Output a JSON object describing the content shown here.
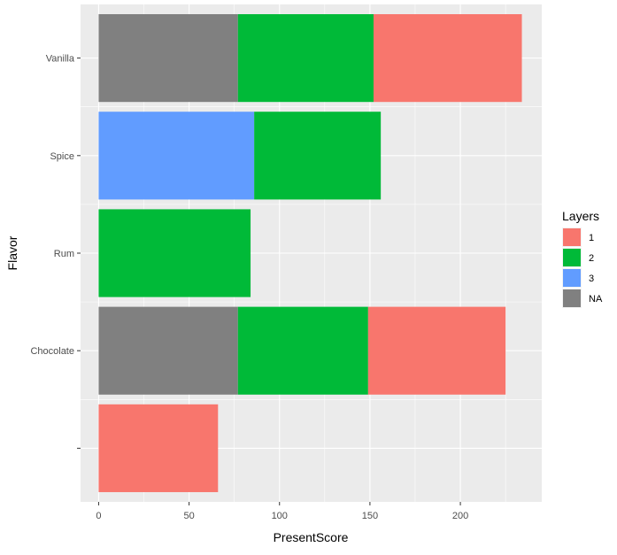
{
  "chart_data": {
    "type": "bar",
    "orientation": "horizontal",
    "stacked": true,
    "xlabel": "PresentScore",
    "ylabel": "Flavor",
    "xlim": [
      -10,
      245
    ],
    "xticks": [
      0,
      50,
      100,
      150,
      200
    ],
    "grid": true,
    "categories": [
      "Vanilla",
      "Spice",
      "Rum",
      "Chocolate",
      ""
    ],
    "legend": {
      "title": "Layers",
      "position": "right",
      "entries": [
        {
          "label": "1",
          "color": "#F8766D"
        },
        {
          "label": "2",
          "color": "#00BA38"
        },
        {
          "label": "3",
          "color": "#619CFF"
        },
        {
          "label": "NA",
          "color": "#808080"
        }
      ]
    },
    "stack_order": [
      "NA",
      "3",
      "2",
      "1"
    ],
    "series": [
      {
        "name": "1",
        "color": "#F8766D",
        "values": [
          82,
          0,
          0,
          76,
          66
        ]
      },
      {
        "name": "2",
        "color": "#00BA38",
        "values": [
          75,
          70,
          84,
          72,
          0
        ]
      },
      {
        "name": "3",
        "color": "#619CFF",
        "values": [
          0,
          86,
          0,
          0,
          0
        ]
      },
      {
        "name": "NA",
        "color": "#808080",
        "values": [
          77,
          0,
          0,
          77,
          0
        ]
      }
    ]
  }
}
